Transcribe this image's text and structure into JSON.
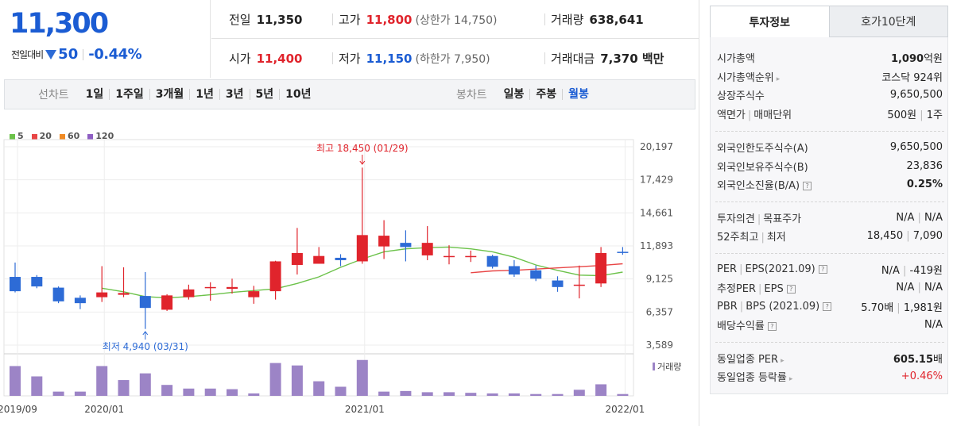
{
  "price": {
    "current": "11,300",
    "change_label": "전일대비",
    "change_value": "50",
    "change_pct": "-0.44%"
  },
  "quote": {
    "row1": [
      {
        "label": "전일",
        "value": "11,350"
      },
      {
        "label": "고가",
        "value": "11,800",
        "sub": "(상한가 14,750)"
      },
      {
        "label": "거래량",
        "value": "638,641"
      }
    ],
    "row2": [
      {
        "label": "시가",
        "value": "11,400"
      },
      {
        "label": "저가",
        "value": "11,150",
        "sub": "(하한가 7,950)"
      },
      {
        "label": "거래대금",
        "value": "7,370 백만"
      }
    ]
  },
  "toolbar": {
    "line_title": "선차트",
    "line_periods": [
      "1일",
      "1주일",
      "3개월",
      "1년",
      "3년",
      "5년",
      "10년"
    ],
    "candle_title": "봉차트",
    "candle_periods": [
      "일봉",
      "주봉",
      "월봉"
    ],
    "candle_active": "월봉"
  },
  "colors": {
    "up": "#e0242c",
    "down": "#2d6bd6",
    "ma5": "#6cc24a",
    "ma20": "#e84545",
    "ma60": "#f08a24",
    "ma120": "#8e5ec3",
    "volume": "#9c84c6"
  },
  "legend": [
    {
      "label": "5",
      "color": "#6cc24a"
    },
    {
      "label": "20",
      "color": "#e84545"
    },
    {
      "label": "60",
      "color": "#f08a24"
    },
    {
      "label": "120",
      "color": "#8e5ec3"
    }
  ],
  "chart_data": {
    "type": "candlestick",
    "period": "monthly",
    "y_ticks": [
      "20,197",
      "17,429",
      "14,661",
      "11,893",
      "9,125",
      "6,357",
      "3,589"
    ],
    "ylim": [
      3589,
      20197
    ],
    "x_ticks": [
      "2019/09",
      "2020/01",
      "2021/01",
      "2022/01"
    ],
    "annotations": [
      {
        "text": "최고 18,450 (01/29)",
        "type": "high",
        "value": 18450
      },
      {
        "text": "최저 4,940 (03/31)",
        "type": "low",
        "value": 4940
      }
    ],
    "volume_label": "거래량",
    "candles": [
      {
        "o": 9300,
        "h": 10500,
        "l": 8000,
        "c": 8100
      },
      {
        "o": 9300,
        "h": 9450,
        "l": 8350,
        "c": 8500
      },
      {
        "o": 8400,
        "h": 8500,
        "l": 7100,
        "c": 7250
      },
      {
        "o": 7550,
        "h": 7750,
        "l": 6600,
        "c": 7100
      },
      {
        "o": 7600,
        "h": 10200,
        "l": 7200,
        "c": 8000
      },
      {
        "o": 7800,
        "h": 10100,
        "l": 7600,
        "c": 7950
      },
      {
        "o": 7700,
        "h": 9700,
        "l": 4940,
        "c": 6700
      },
      {
        "o": 6550,
        "h": 7850,
        "l": 6450,
        "c": 7750
      },
      {
        "o": 7600,
        "h": 8650,
        "l": 7400,
        "c": 8250
      },
      {
        "o": 8400,
        "h": 8850,
        "l": 7300,
        "c": 8450
      },
      {
        "o": 8300,
        "h": 9150,
        "l": 7900,
        "c": 8450
      },
      {
        "o": 7600,
        "h": 8550,
        "l": 7050,
        "c": 8100
      },
      {
        "o": 8100,
        "h": 10650,
        "l": 7400,
        "c": 10600
      },
      {
        "o": 10300,
        "h": 13400,
        "l": 9500,
        "c": 11300
      },
      {
        "o": 10400,
        "h": 11800,
        "l": 10400,
        "c": 11050
      },
      {
        "o": 10900,
        "h": 11200,
        "l": 10200,
        "c": 10700
      },
      {
        "o": 10600,
        "h": 18450,
        "l": 10400,
        "c": 12800
      },
      {
        "o": 11850,
        "h": 14050,
        "l": 10800,
        "c": 12750
      },
      {
        "o": 12150,
        "h": 13200,
        "l": 10600,
        "c": 11800
      },
      {
        "o": 11100,
        "h": 13550,
        "l": 10700,
        "c": 12150
      },
      {
        "o": 10950,
        "h": 11950,
        "l": 10350,
        "c": 11050
      },
      {
        "o": 10950,
        "h": 11500,
        "l": 10550,
        "c": 11050
      },
      {
        "o": 11050,
        "h": 11150,
        "l": 10000,
        "c": 10150
      },
      {
        "o": 10200,
        "h": 10700,
        "l": 9300,
        "c": 9500
      },
      {
        "o": 9850,
        "h": 10250,
        "l": 8950,
        "c": 9150
      },
      {
        "o": 9000,
        "h": 9350,
        "l": 8050,
        "c": 8450
      },
      {
        "o": 8650,
        "h": 10250,
        "l": 7500,
        "c": 8650
      },
      {
        "o": 8750,
        "h": 11800,
        "l": 8450,
        "c": 11300
      },
      {
        "o": 11400,
        "h": 11800,
        "l": 11150,
        "c": 11300
      }
    ],
    "volumes": [
      2.45,
      1.6,
      0.35,
      0.35,
      2.45,
      1.3,
      1.85,
      0.9,
      0.6,
      0.6,
      0.55,
      0.2,
      2.7,
      2.5,
      1.2,
      0.75,
      2.95,
      0.35,
      0.4,
      0.3,
      0.3,
      0.25,
      0.2,
      0.2,
      0.15,
      0.15,
      0.5,
      0.95,
      0.15
    ],
    "ma5": [
      null,
      null,
      null,
      null,
      8350,
      8050,
      7650,
      7550,
      7650,
      7800,
      8000,
      8150,
      8300,
      8750,
      9300,
      10100,
      10800,
      11400,
      11650,
      11750,
      11800,
      11650,
      11400,
      10950,
      10300,
      9850,
      9450,
      9400,
      9700
    ],
    "ma20": [
      null,
      null,
      null,
      null,
      null,
      null,
      null,
      null,
      null,
      null,
      null,
      null,
      null,
      null,
      null,
      null,
      null,
      null,
      null,
      null,
      null,
      9650,
      9800,
      9850,
      9950,
      10050,
      10150,
      10250,
      10400
    ]
  },
  "side": {
    "tabs": [
      "투자정보",
      "호가10단계"
    ],
    "sections": [
      [
        {
          "k": "시가총액",
          "v": "1,090",
          "vsub": "억원",
          "bold": true
        },
        {
          "k": "시가총액순위",
          "arrow": true,
          "v": "코스닥 924위"
        },
        {
          "k": "상장주식수",
          "v": "9,650,500"
        },
        {
          "k": "액면가",
          "k2": "매매단위",
          "v": "500원",
          "v2": "1주"
        }
      ],
      [
        {
          "k": "외국인한도주식수(A)",
          "v": "9,650,500"
        },
        {
          "k": "외국인보유주식수(B)",
          "v": "23,836"
        },
        {
          "k": "외국인소진율(B/A)",
          "q": true,
          "v": "0.25%",
          "bold": true
        }
      ],
      [
        {
          "k": "투자의견",
          "k2": "목표주가",
          "v": "N/A",
          "v2": "N/A"
        },
        {
          "k": "52주최고",
          "k2": "최저",
          "v": "18,450",
          "v2": "7,090"
        }
      ],
      [
        {
          "k": "PER",
          "k2": "EPS(2021.09)",
          "q": true,
          "v": "N/A",
          "v2": "-419원"
        },
        {
          "k": "추정PER",
          "k2": "EPS",
          "q": true,
          "v": "N/A",
          "v2": "N/A"
        },
        {
          "k": "PBR",
          "k2": "BPS (2021.09)",
          "q": true,
          "v": "5.70배",
          "v2": "1,981원"
        },
        {
          "k": "배당수익률",
          "q": true,
          "v": "N/A"
        }
      ],
      [
        {
          "k": "동일업종 PER",
          "arrow": true,
          "v": "605.15",
          "vsub": "배",
          "bold": true
        },
        {
          "k": "동일업종 등락률",
          "arrow": true,
          "v": "+0.46%",
          "red": true
        }
      ]
    ]
  }
}
